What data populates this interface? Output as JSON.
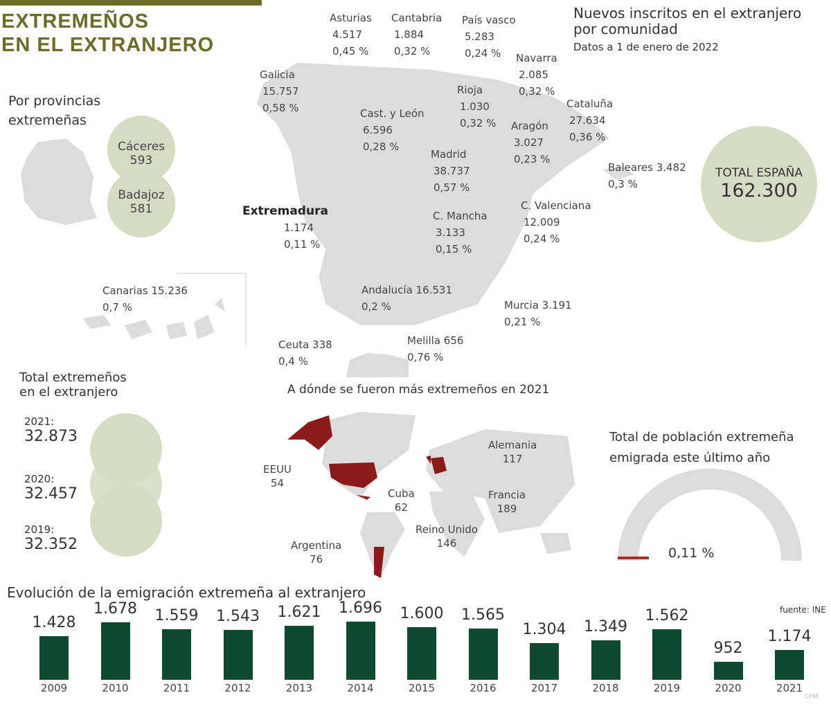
{
  "header": {
    "title_line1": "EXTREMEÑOS",
    "title_line2": "EN EL EXTRANJERO"
  },
  "map_section": {
    "title_line1": "Nuevos inscritos en el extranjero",
    "title_line2": "por comunidad",
    "subtitle": "Datos a 1 de enero de 2022"
  },
  "provinces": {
    "label_line1": "Por provincias",
    "label_line2": "extremeñas",
    "items": [
      {
        "name": "Cáceres",
        "value": "593"
      },
      {
        "name": "Badajoz",
        "value": "581"
      }
    ]
  },
  "regions": [
    {
      "name": "Asturias",
      "value": "4.517",
      "pct": "0,45 %"
    },
    {
      "name": "Cantabria",
      "value": "1.884",
      "pct": "0,32 %"
    },
    {
      "name": "País vasco",
      "value": "5.283",
      "pct": "0,24 %"
    },
    {
      "name": "Navarra",
      "value": "2.085",
      "pct": "0,32 %"
    },
    {
      "name": "Galicia",
      "value": "15.757",
      "pct": "0,58 %"
    },
    {
      "name": "Rioja",
      "value": "1.030",
      "pct": "0,32 %"
    },
    {
      "name": "Cast. y León",
      "value": "6.596",
      "pct": "0,28 %"
    },
    {
      "name": "Cataluña",
      "value": "27.634",
      "pct": "0,36 %"
    },
    {
      "name": "Aragón",
      "value": "3.027",
      "pct": "0,23 %"
    },
    {
      "name": "Madrid",
      "value": "38.737",
      "pct": "0,57 %"
    },
    {
      "name": "Baleares 3.482",
      "value": "",
      "pct": "0,3 %"
    },
    {
      "name": "Extremadura",
      "value": "1.174",
      "pct": "0,11 %"
    },
    {
      "name": "C. Mancha",
      "value": "3.133",
      "pct": "0,15 %"
    },
    {
      "name": "C. Valenciana",
      "value": "12.009",
      "pct": "0,24 %"
    },
    {
      "name": "Canarias 15.236",
      "value": "",
      "pct": "0,7 %"
    },
    {
      "name": "Andalucía 16.531",
      "value": "",
      "pct": "0,2 %"
    },
    {
      "name": "Murcia 3.191",
      "value": "",
      "pct": "0,21 %"
    },
    {
      "name": "Ceuta 338",
      "value": "",
      "pct": "0,4 %"
    },
    {
      "name": "Melilla 656",
      "value": "",
      "pct": "0,76 %"
    }
  ],
  "total_spain": {
    "label": "TOTAL ESPAÑA",
    "value": "162.300"
  },
  "totals": {
    "label_line1": "Total extremeños",
    "label_line2": "en el extranjero",
    "items": [
      {
        "year": "2021:",
        "value": "32.873"
      },
      {
        "year": "2020:",
        "value": "32.457"
      },
      {
        "year": "2019:",
        "value": "32.352"
      }
    ]
  },
  "world": {
    "title": "A dónde se fueron más extremeños en 2021",
    "destinations": [
      {
        "name": "EEUU",
        "value": "54"
      },
      {
        "name": "Cuba",
        "value": "62"
      },
      {
        "name": "Argentina",
        "value": "76"
      },
      {
        "name": "Alemania",
        "value": "117"
      },
      {
        "name": "Francia",
        "value": "189"
      },
      {
        "name": "Reino Unido",
        "value": "146"
      }
    ],
    "highlight_color": "#8b1a1a"
  },
  "gauge": {
    "label_line1": "Total de población extremeña",
    "label_line2": "emigrada este último año",
    "value_label": "0,11 %",
    "value_pct": 0.11
  },
  "chart_data": {
    "type": "bar",
    "title": "Evolución de la emigración extremeña al extranjero",
    "categories": [
      "2009",
      "2010",
      "2011",
      "2012",
      "2013",
      "2014",
      "2015",
      "2016",
      "2017",
      "2018",
      "2019",
      "2020",
      "2021"
    ],
    "values": [
      1428,
      1678,
      1559,
      1543,
      1621,
      1696,
      1600,
      1565,
      1304,
      1349,
      1562,
      952,
      1174
    ],
    "value_labels": [
      "1.428",
      "1.678",
      "1.559",
      "1.543",
      "1.621",
      "1.696",
      "1.600",
      "1.565",
      "1.304",
      "1.349",
      "1.562",
      "952",
      "1.174"
    ],
    "bar_color": "#0d4a2e",
    "grid": false
  },
  "source": "fuente: INE",
  "credit": "CPM"
}
